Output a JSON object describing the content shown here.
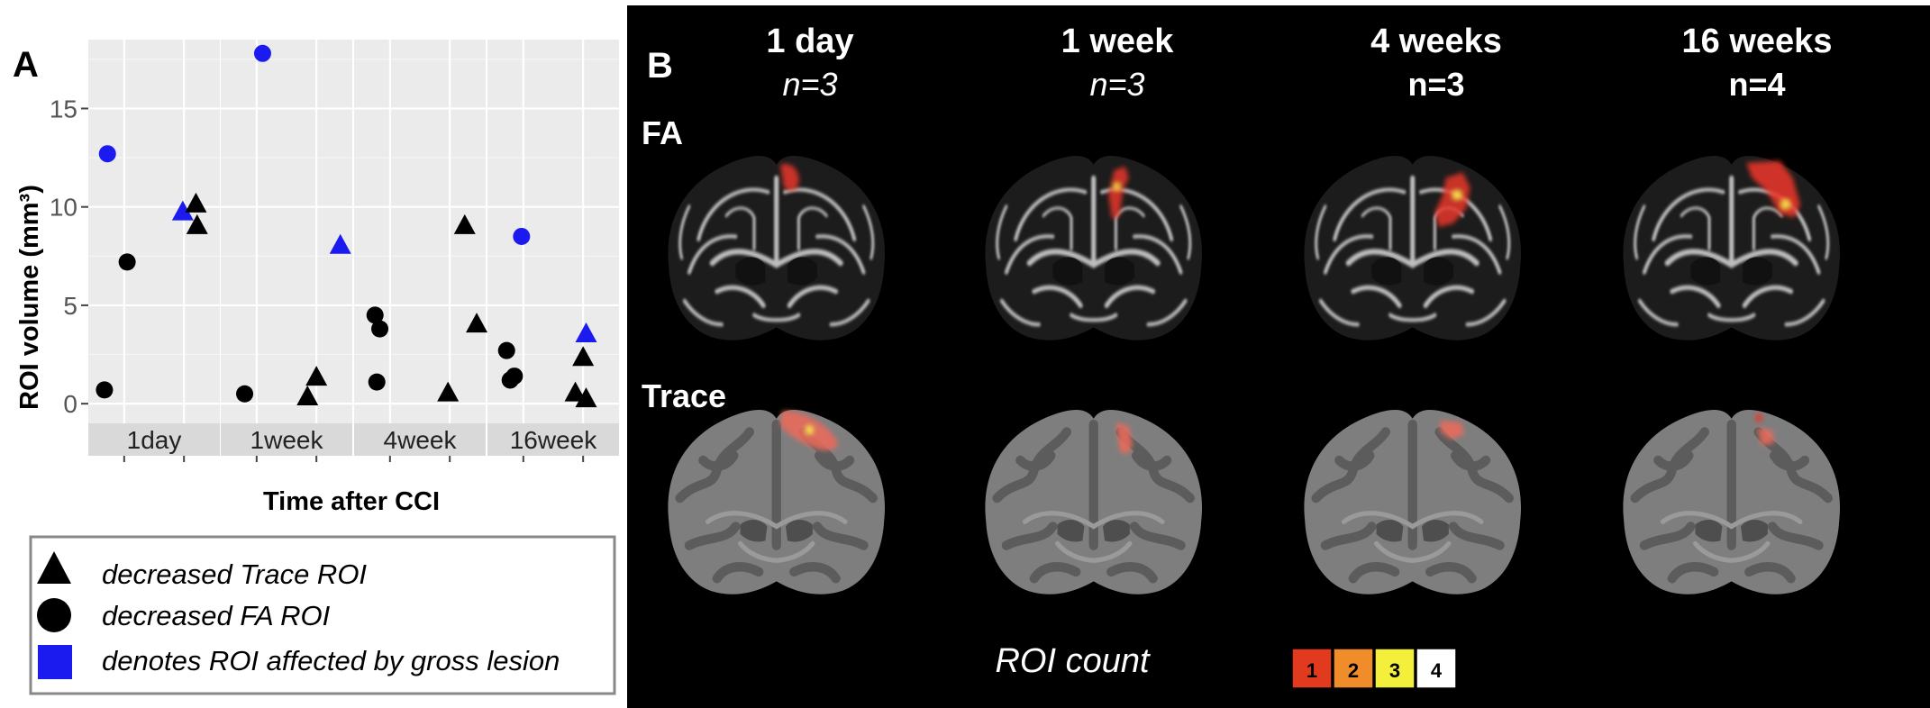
{
  "panel_a": {
    "label": "A",
    "chart_data": {
      "type": "scatter",
      "title": "",
      "xlabel": "Time after CCI",
      "ylabel": "ROI volume (mm³)",
      "ylim": [
        -1,
        18.5
      ],
      "yticks": [
        0,
        5,
        10,
        15
      ],
      "facets": [
        "1day",
        "1week",
        "4week",
        "16week"
      ],
      "grid": true,
      "series": [
        {
          "name": "decreased FA ROI",
          "shape": "circle",
          "points": [
            {
              "facet": "1day",
              "x": 0.67,
              "y": 0.7,
              "gross_lesion": false
            },
            {
              "facet": "1day",
              "x": 1.05,
              "y": 7.2,
              "gross_lesion": false
            },
            {
              "facet": "1day",
              "x": 0.72,
              "y": 12.7,
              "gross_lesion": true
            },
            {
              "facet": "1week",
              "x": 0.8,
              "y": 0.5,
              "gross_lesion": false
            },
            {
              "facet": "1week",
              "x": 1.1,
              "y": 17.8,
              "gross_lesion": true
            },
            {
              "facet": "4week",
              "x": 0.75,
              "y": 4.5,
              "gross_lesion": false
            },
            {
              "facet": "4week",
              "x": 0.83,
              "y": 3.8,
              "gross_lesion": false
            },
            {
              "facet": "4week",
              "x": 0.78,
              "y": 1.1,
              "gross_lesion": false
            },
            {
              "facet": "16week",
              "x": 0.72,
              "y": 2.7,
              "gross_lesion": false
            },
            {
              "facet": "16week",
              "x": 0.78,
              "y": 1.2,
              "gross_lesion": false
            },
            {
              "facet": "16week",
              "x": 0.85,
              "y": 1.4,
              "gross_lesion": false
            },
            {
              "facet": "16week",
              "x": 0.97,
              "y": 8.5,
              "gross_lesion": true
            }
          ]
        },
        {
          "name": "decreased Trace ROI",
          "shape": "triangle",
          "points": [
            {
              "facet": "1day",
              "x": 1.98,
              "y": 9.7,
              "gross_lesion": true
            },
            {
              "facet": "1day",
              "x": 2.2,
              "y": 10.1,
              "gross_lesion": false
            },
            {
              "facet": "1day",
              "x": 2.22,
              "y": 9.0,
              "gross_lesion": false
            },
            {
              "facet": "1week",
              "x": 1.85,
              "y": 0.3,
              "gross_lesion": false
            },
            {
              "facet": "1week",
              "x": 2.0,
              "y": 1.3,
              "gross_lesion": false
            },
            {
              "facet": "1week",
              "x": 2.4,
              "y": 8.0,
              "gross_lesion": true
            },
            {
              "facet": "4week",
              "x": 1.97,
              "y": 0.5,
              "gross_lesion": false
            },
            {
              "facet": "4week",
              "x": 2.25,
              "y": 9.0,
              "gross_lesion": false
            },
            {
              "facet": "4week",
              "x": 2.45,
              "y": 4.0,
              "gross_lesion": false
            },
            {
              "facet": "16week",
              "x": 1.87,
              "y": 0.5,
              "gross_lesion": false
            },
            {
              "facet": "16week",
              "x": 2.05,
              "y": 0.2,
              "gross_lesion": false
            },
            {
              "facet": "16week",
              "x": 2.0,
              "y": 2.3,
              "gross_lesion": false
            },
            {
              "facet": "16week",
              "x": 2.05,
              "y": 3.5,
              "gross_lesion": true
            }
          ]
        }
      ]
    },
    "legend": {
      "items": [
        {
          "label": "decreased Trace ROI",
          "symbol": "triangle"
        },
        {
          "label": "decreased FA ROI",
          "symbol": "circle"
        },
        {
          "label": "denotes ROI affected by gross lesion",
          "symbol": "square"
        }
      ]
    }
  },
  "panel_b": {
    "label": "B",
    "columns": [
      {
        "title": "1 day",
        "n": "n=3",
        "n_italic": true
      },
      {
        "title": "1 week",
        "n": "n=3",
        "n_italic": true
      },
      {
        "title": "4 weeks",
        "n": "n=3",
        "n_italic": false
      },
      {
        "title": "16 weeks",
        "n": "n=4",
        "n_italic": false
      }
    ],
    "rows": [
      {
        "label": "FA"
      },
      {
        "label": "Trace"
      }
    ],
    "roi_count_label": "ROI count",
    "roi_scale": [
      {
        "value": "1",
        "color": "#e23a1f"
      },
      {
        "value": "2",
        "color": "#f08c2a"
      },
      {
        "value": "3",
        "color": "#f4ef3a"
      },
      {
        "value": "4",
        "color": "#ffffff"
      }
    ]
  },
  "colors": {
    "marker": "#000000",
    "gross_lesion": "#1b1bf0",
    "facet_bg": "#ebebeb",
    "strip_bg": "#d9d9d9",
    "overlay_red": "#e8362a",
    "overlay_yellow": "#f7e24a"
  }
}
